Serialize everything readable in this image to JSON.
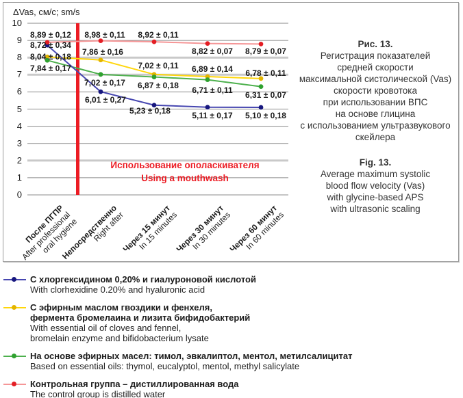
{
  "figure": {
    "caption_ru": {
      "title": "Рис. 13.",
      "lines": [
        "Регистрация показателей",
        "средней скорости",
        "максимальной систолической (Vas)",
        "скорости кровотока",
        "при использовании ВПС",
        "на основе глицина",
        "с использованием ультразвукового",
        "скейлера"
      ]
    },
    "caption_en": {
      "title": "Fig. 13.",
      "lines": [
        "Average maximum systolic",
        "blood flow velocity (Vas)",
        "with glycine-based APS",
        "with ultrasonic scaling"
      ]
    }
  },
  "chart_data": {
    "type": "line",
    "ylabel": "ΔVas, см/с; sm/s",
    "ylim": [
      0,
      10
    ],
    "y_ticks": [
      "10",
      "9",
      "8",
      "7",
      "6",
      "5",
      "4",
      "3",
      "2",
      "1",
      "0"
    ],
    "grid": "horizontal, thick light lines at 8, 7 and 2",
    "categories": [
      {
        "ru": "После ПГПР",
        "en": [
          "After professional",
          "oral hygiene"
        ]
      },
      {
        "ru": "Непосредственно",
        "en": [
          "Right after"
        ]
      },
      {
        "ru": "Через 15 минут",
        "en": [
          "In 15 minutes"
        ]
      },
      {
        "ru": "Через 30 минут",
        "en": [
          "In 30 minutes"
        ]
      },
      {
        "ru": "Через 60 минут",
        "en": [
          "In 60 minutes"
        ]
      }
    ],
    "event_line": {
      "label_ru": "Использование ополаскивателя",
      "label_en": "Using a mouthwash",
      "color": "#ec1c24",
      "position": "vertical red line between category 1 and category 2"
    },
    "series": [
      {
        "key": "cloves_fennel",
        "name_ru": "С эфирным маслом гвоздики и фенхеля, фермента бромелаина и лизита бифидобактерий",
        "name_en": "With essential oil of cloves and fennel, bromelain enzyme and bifidobacterium lysate",
        "line_color": "#ffd60a",
        "marker_color": "#e3b400",
        "values": [
          8.04,
          7.86,
          7.02,
          6.89,
          6.78
        ],
        "labels": [
          "8,04 ± 0,18",
          "7,86 ± 0,16",
          "7,02 ± 0,11",
          "6,89 ± 0,14",
          "6,78 ± 0,11"
        ]
      },
      {
        "key": "essential_oils",
        "name_ru": "На основе эфирных масел: тимол, эвкалиптол, ментол, метилсалицитат",
        "name_en": "Based on essential oils: thymol, eucalyptol, mentol, methyl salicylate",
        "line_color": "#4db04d",
        "marker_color": "#2fa12f",
        "values": [
          7.84,
          7.02,
          6.87,
          6.71,
          6.31
        ],
        "labels": [
          "7,84 ± 0,17",
          "7,02 ± 0,17",
          "6,87 ± 0,18",
          "6,71 ± 0,11",
          "6,31 ± 0,07"
        ]
      },
      {
        "key": "chlorhexidine",
        "name_ru": "С хлоргексидином 0,20% и гиалуроновой кислотой",
        "name_en": "With clorhexidine 0.20% and hyaluronic acid",
        "line_color": "#4646b0",
        "marker_color": "#17177e",
        "values": [
          8.72,
          6.01,
          5.23,
          5.11,
          5.1
        ],
        "labels": [
          "8,72 ± 0,34",
          "6,01 ± 0,27",
          "5,23 ± 0,18",
          "5,11 ± 0,17",
          "5,10 ± 0,18"
        ]
      },
      {
        "key": "control",
        "name_ru": "Контрольная группа – дистиллированная вода",
        "name_en": "The control group is distilled water",
        "line_color": "#f59697",
        "marker_color": "#e31e24",
        "values": [
          8.89,
          8.98,
          8.92,
          8.82,
          8.79
        ],
        "labels": [
          "8,89 ± 0,12",
          "8,98 ± 0,11",
          "8,92 ± 0,11",
          "8,82 ± 0,07",
          "8,79 ± 0,07"
        ]
      }
    ],
    "colors": {
      "grid_thin": "#8a8a8a",
      "grid_thick": "#c9c9c9",
      "text": "#1a1a1a"
    }
  },
  "legend": {
    "items": [
      {
        "series_key": "chlorhexidine",
        "ru": [
          "С хлоргексидином 0,20% и гиалуроновой кислотой"
        ],
        "en": [
          "With clorhexidine 0.20% and hyaluronic acid"
        ]
      },
      {
        "series_key": "cloves_fennel",
        "ru": [
          "С эфирным маслом гвоздики и фенхеля,",
          "фермента бромелаина и лизита бифидобактерий"
        ],
        "en": [
          "With essential oil of cloves and fennel,",
          "bromelain enzyme and bifidobacterium lysate"
        ]
      },
      {
        "series_key": "essential_oils",
        "ru": [
          "На основе эфирных масел: тимол, эвкалиптол, ментол, метилсалицитат"
        ],
        "en": [
          "Based on essential oils: thymol, eucalyptol, mentol, methyl salicylate"
        ]
      },
      {
        "series_key": "control",
        "ru": [
          "Контрольная группа – дистиллированная вода"
        ],
        "en": [
          "The control group is distilled water"
        ]
      }
    ]
  }
}
